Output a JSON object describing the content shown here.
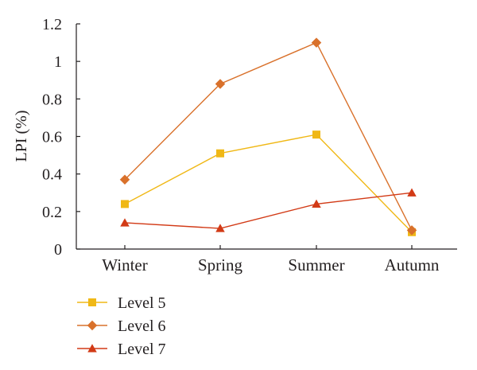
{
  "chart_data": {
    "type": "line",
    "title": "",
    "xlabel": "",
    "ylabel": "LPI (%)",
    "categories": [
      "Winter",
      "Spring",
      "Summer",
      "Autumn"
    ],
    "ylim": [
      0,
      1.2
    ],
    "yticks": [
      "0",
      "0.2",
      "0.4",
      "0.6",
      "0.8",
      "1",
      "1.2"
    ],
    "grid": false,
    "legend_position": "bottom-left",
    "series": [
      {
        "name": "Level 5",
        "values": [
          0.24,
          0.51,
          0.61,
          0.09
        ],
        "color": "#F0B816",
        "marker": "square"
      },
      {
        "name": "Level 6",
        "values": [
          0.37,
          0.88,
          1.1,
          0.1
        ],
        "color": "#D9712B",
        "marker": "diamond"
      },
      {
        "name": "Level 7",
        "values": [
          0.14,
          0.11,
          0.24,
          0.3
        ],
        "color": "#D23A16",
        "marker": "triangle"
      }
    ]
  }
}
